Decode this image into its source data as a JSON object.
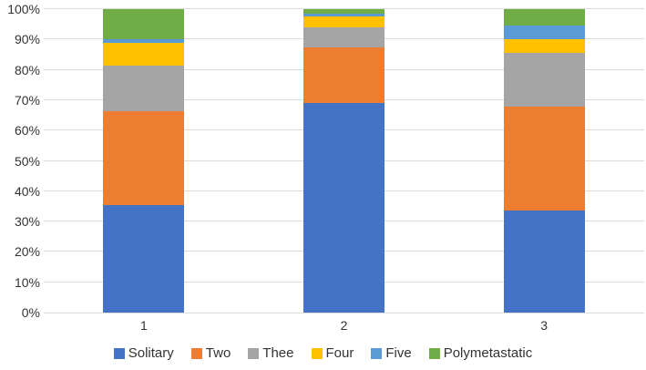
{
  "chart_data": {
    "type": "bar",
    "variant": "stacked-100-percent",
    "title": "",
    "xlabel": "",
    "ylabel": "",
    "categories": [
      "1",
      "2",
      "3"
    ],
    "series": [
      {
        "name": "Solitary",
        "color": "#4472C4",
        "values": [
          35.5,
          69.0,
          33.5
        ]
      },
      {
        "name": "Two",
        "color": "#ED7D31",
        "values": [
          31.0,
          18.5,
          34.5
        ]
      },
      {
        "name": "Thee",
        "color": "#A5A5A5",
        "values": [
          15.0,
          6.5,
          17.5
        ]
      },
      {
        "name": "Four",
        "color": "#FFC000",
        "values": [
          7.5,
          3.5,
          4.5
        ]
      },
      {
        "name": "Five",
        "color": "#5B9BD5",
        "values": [
          1.0,
          1.0,
          4.5
        ]
      },
      {
        "name": "Polymetastatic",
        "color": "#70AD47",
        "values": [
          10.0,
          1.5,
          5.5
        ]
      }
    ],
    "y_axis": {
      "min": 0,
      "max": 100,
      "step": 10,
      "tick_labels": [
        "0%",
        "10%",
        "20%",
        "30%",
        "40%",
        "50%",
        "60%",
        "70%",
        "80%",
        "90%",
        "100%"
      ]
    },
    "legend_position": "bottom",
    "grid": true,
    "gridline_color": "#dcdcdc",
    "text_color": "#333333",
    "background_color": "#ffffff"
  }
}
